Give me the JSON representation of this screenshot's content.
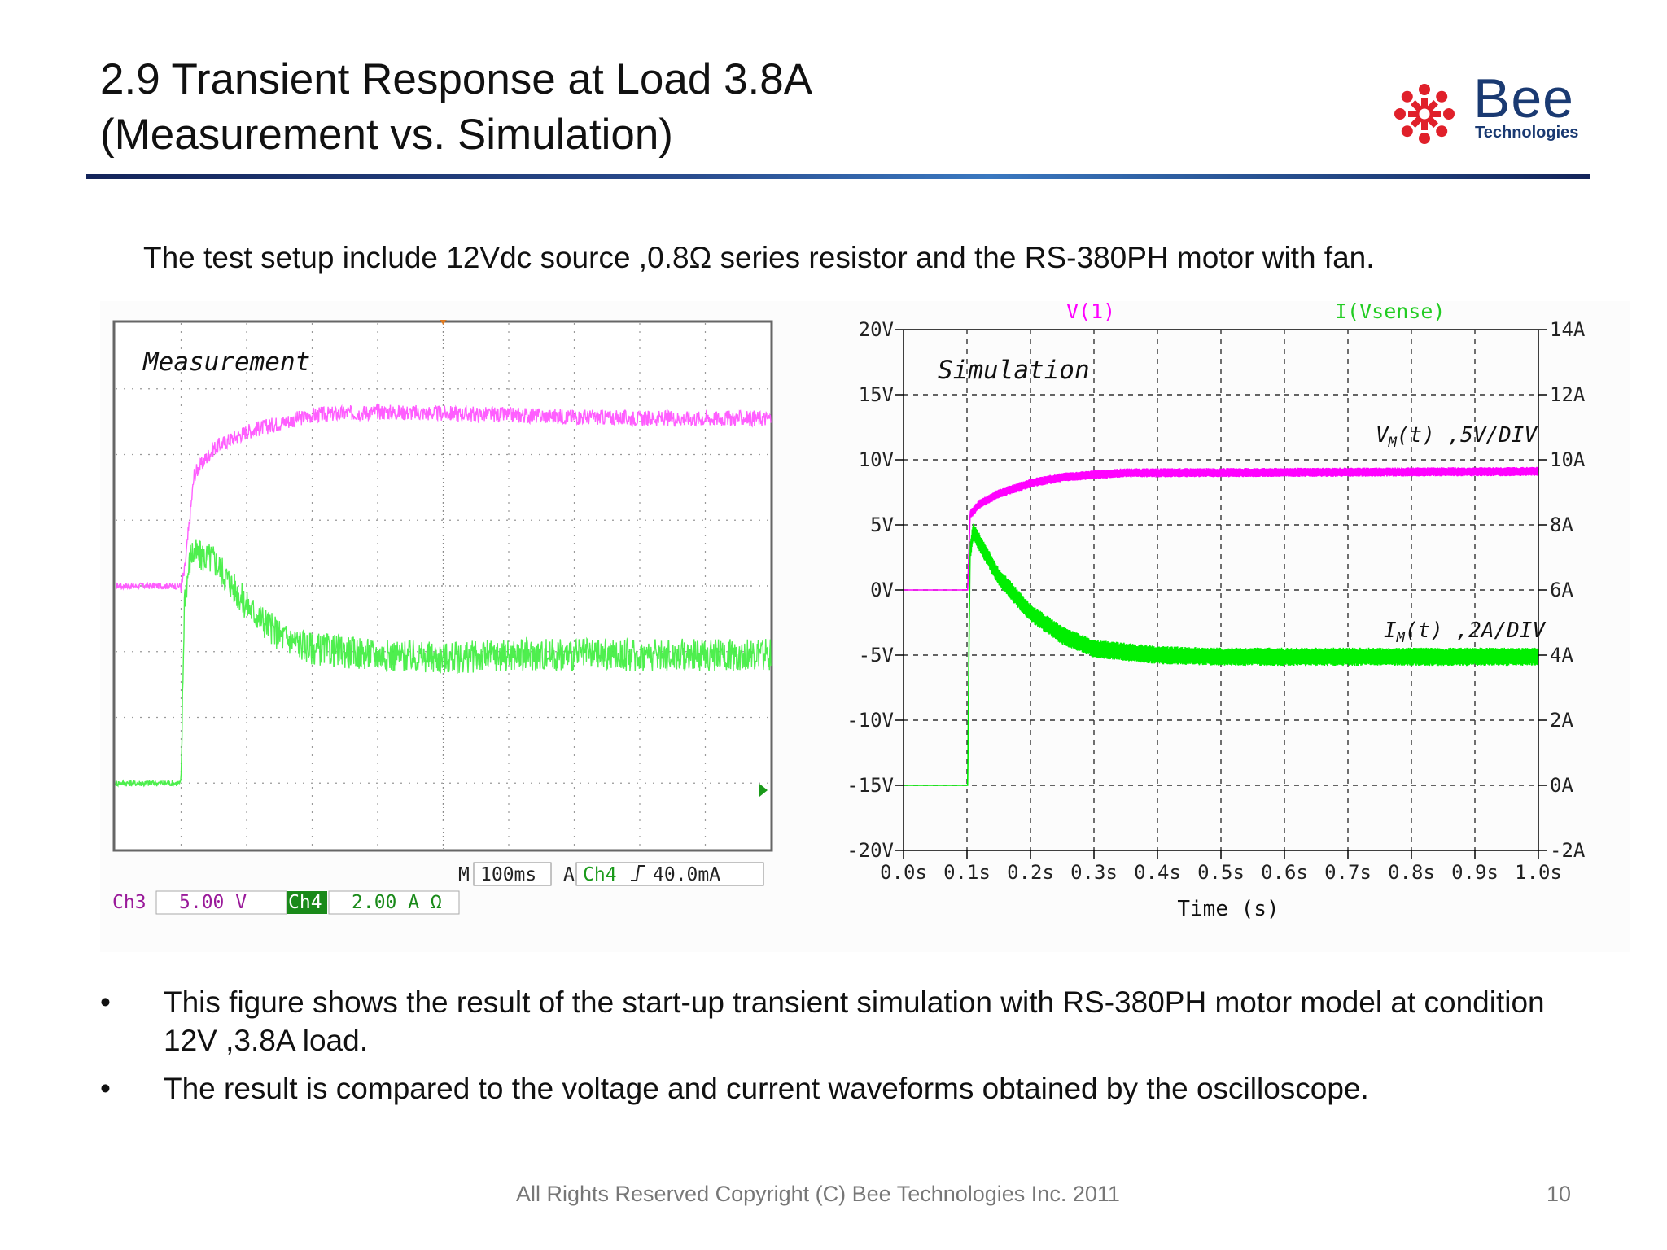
{
  "slide": {
    "title_line1": "2.9 Transient Response at Load 3.8A",
    "title_line2": "(Measurement vs. Simulation)",
    "intro": "The test setup include 12Vdc source ,0.8Ω series resistor and the RS-380PH motor with fan.",
    "bullets": [
      "This figure shows the result of the start-up transient simulation with RS-380PH motor model at condition 12V ,3.8A load.",
      "The result is compared to the voltage and current waveforms obtained by the oscilloscope."
    ],
    "footer": "All Rights Reserved Copyright (C) Bee Technologies Inc. 2011",
    "page_number": "10"
  },
  "logo": {
    "word": "Bee",
    "sub": "Technologies",
    "mark_color": "#e0202a",
    "word_color": "#1a3a72"
  },
  "chart_data": [
    {
      "type": "line",
      "label": "Measurement",
      "timebase": "100ms",
      "trigger_label": "A",
      "trigger_channel": "Ch4",
      "trigger_level": "40.0mA",
      "ch3_label": "Ch3",
      "ch3_scale": "5.00 V",
      "ch4_label": "Ch4",
      "ch4_scale": "2.00 A Ω",
      "x_divisions": 10,
      "y_divisions": 8,
      "series": [
        {
          "color": "#ff55ff",
          "points": [
            [
              0,
              4.0
            ],
            [
              0.6,
              4.0
            ],
            [
              1.0,
              4.0
            ],
            [
              1.05,
              4.2
            ],
            [
              1.2,
              5.7
            ],
            [
              1.5,
              6.1
            ],
            [
              2,
              6.35
            ],
            [
              3,
              6.6
            ],
            [
              4,
              6.65
            ],
            [
              6,
              6.6
            ],
            [
              8,
              6.55
            ],
            [
              10,
              6.55
            ]
          ]
        },
        {
          "color": "#44ee44",
          "points": [
            [
              0,
              1.0
            ],
            [
              0.6,
              1.0
            ],
            [
              1.0,
              1.0
            ],
            [
              1.05,
              3.8
            ],
            [
              1.15,
              4.5
            ],
            [
              1.5,
              4.4
            ],
            [
              2,
              3.7
            ],
            [
              2.5,
              3.25
            ],
            [
              3,
              3.05
            ],
            [
              4,
              2.95
            ],
            [
              5,
              2.9
            ],
            [
              6,
              2.95
            ],
            [
              8,
              2.95
            ],
            [
              10,
              2.95
            ]
          ]
        }
      ]
    },
    {
      "type": "line",
      "label": "Simulation",
      "x_label": "Time (s)",
      "x_ticks": [
        "0.0s",
        "0.1s",
        "0.2s",
        "0.3s",
        "0.4s",
        "0.5s",
        "0.6s",
        "0.7s",
        "0.8s",
        "0.9s",
        "1.0s"
      ],
      "y_left_ticks": [
        "20V",
        "15V",
        "10V",
        "5V",
        "0V",
        "-5V",
        "-10V",
        "-15V",
        "-20V"
      ],
      "y_right_ticks": [
        "14A",
        "12A",
        "10A",
        "8A",
        "6A",
        "4A",
        "2A",
        "0A",
        "-2A"
      ],
      "xlim": [
        0,
        1.0
      ],
      "ylim_left": [
        -20,
        20
      ],
      "ylim_right": [
        -2,
        14
      ],
      "legend_v": "V(1)",
      "legend_i": "I(Vsense)",
      "annotation_v_main": "V",
      "annotation_v_sub": "M",
      "annotation_v_rest": "(t) ,5V/DIV",
      "annotation_i_main": "I",
      "annotation_i_sub": "M",
      "annotation_i_rest": "(t) ,2A/DIV",
      "series": [
        {
          "name": "V(1)",
          "color": "#ff00ff",
          "axis": "left",
          "points": [
            [
              0,
              0
            ],
            [
              0.1,
              0
            ],
            [
              0.101,
              0
            ],
            [
              0.105,
              5.8
            ],
            [
              0.12,
              6.6
            ],
            [
              0.15,
              7.4
            ],
            [
              0.2,
              8.2
            ],
            [
              0.25,
              8.65
            ],
            [
              0.3,
              8.85
            ],
            [
              0.35,
              9.0
            ],
            [
              0.4,
              9.0
            ],
            [
              1.0,
              9.1
            ]
          ]
        },
        {
          "name": "I(Vsense)",
          "color": "#00ee00",
          "axis": "right",
          "points": [
            [
              0,
              0
            ],
            [
              0.1,
              0
            ],
            [
              0.101,
              0
            ],
            [
              0.103,
              4.0
            ],
            [
              0.105,
              7.2
            ],
            [
              0.11,
              7.8
            ],
            [
              0.13,
              7.1
            ],
            [
              0.15,
              6.4
            ],
            [
              0.2,
              5.3
            ],
            [
              0.25,
              4.6
            ],
            [
              0.3,
              4.2
            ],
            [
              0.4,
              4.0
            ],
            [
              0.5,
              3.95
            ],
            [
              1.0,
              3.95
            ]
          ]
        }
      ]
    }
  ]
}
